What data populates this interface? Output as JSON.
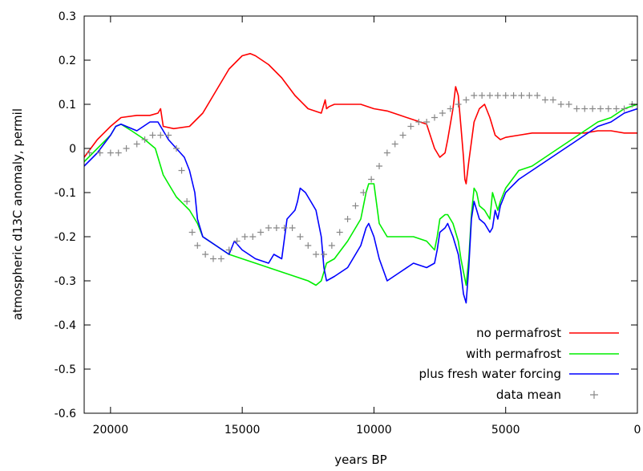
{
  "chart_data": {
    "type": "line",
    "title": "",
    "xlabel": "years BP",
    "ylabel": "atmospheric d13C anomaly, permil",
    "xlim": [
      21000,
      0
    ],
    "ylim": [
      -0.6,
      0.3
    ],
    "x_reversed": true,
    "grid": false,
    "legend_position": "bottom-right",
    "x_ticks": [
      20000,
      15000,
      10000,
      5000,
      0
    ],
    "x_tick_labels": [
      "20000",
      "15000",
      "10000",
      "5000",
      "0"
    ],
    "y_ticks": [
      0.3,
      0.2,
      0.1,
      0,
      -0.1,
      -0.2,
      -0.3,
      -0.4,
      -0.5,
      -0.6
    ],
    "y_tick_labels": [
      "0.3",
      "0.2",
      "0.1",
      "0",
      "-0.1",
      "-0.2",
      "-0.3",
      "-0.4",
      "-0.5",
      "-0.6"
    ],
    "series": [
      {
        "name": "no permafrost",
        "color": "#ff0000",
        "style": "line",
        "x": [
          21000,
          20500,
          20000,
          19800,
          19600,
          19000,
          18500,
          18200,
          18100,
          18000,
          17600,
          17000,
          16500,
          16000,
          15500,
          15000,
          14700,
          14500,
          14000,
          13500,
          13000,
          12500,
          12000,
          11900,
          11850,
          11800,
          11700,
          11500,
          11000,
          10500,
          10000,
          9500,
          9000,
          8500,
          8000,
          7700,
          7500,
          7300,
          7200,
          7000,
          6900,
          6800,
          6700,
          6600,
          6550,
          6500,
          6400,
          6200,
          6000,
          5800,
          5600,
          5400,
          5200,
          5000,
          4500,
          4000,
          3500,
          3000,
          2500,
          2000,
          1500,
          1000,
          500,
          0
        ],
        "y": [
          -0.02,
          0.02,
          0.05,
          0.06,
          0.07,
          0.075,
          0.075,
          0.08,
          0.09,
          0.05,
          0.045,
          0.05,
          0.08,
          0.13,
          0.18,
          0.21,
          0.215,
          0.21,
          0.19,
          0.16,
          0.12,
          0.09,
          0.08,
          0.1,
          0.11,
          0.09,
          0.095,
          0.1,
          0.1,
          0.1,
          0.09,
          0.085,
          0.075,
          0.065,
          0.055,
          0.0,
          -0.02,
          -0.01,
          0.02,
          0.09,
          0.14,
          0.12,
          0.05,
          -0.02,
          -0.07,
          -0.08,
          -0.03,
          0.06,
          0.09,
          0.1,
          0.07,
          0.03,
          0.02,
          0.025,
          0.03,
          0.035,
          0.035,
          0.035,
          0.035,
          0.035,
          0.04,
          0.04,
          0.035,
          0.035
        ]
      },
      {
        "name": "with permafrost",
        "color": "#00ee00",
        "style": "line",
        "x": [
          21000,
          20500,
          20000,
          19800,
          19600,
          19200,
          18700,
          18300,
          18000,
          17800,
          17500,
          17000,
          16700,
          16500,
          16000,
          15500,
          15000,
          14500,
          14000,
          13500,
          13000,
          12500,
          12200,
          12000,
          11900,
          11800,
          11500,
          11000,
          10500,
          10300,
          10200,
          10000,
          9800,
          9500,
          9000,
          8500,
          8000,
          7700,
          7600,
          7500,
          7300,
          7200,
          7000,
          6800,
          6700,
          6600,
          6500,
          6400,
          6300,
          6200,
          6100,
          6000,
          5800,
          5600,
          5500,
          5400,
          5300,
          5200,
          5000,
          4500,
          4000,
          3500,
          3000,
          2500,
          2000,
          1500,
          1000,
          500,
          0
        ],
        "y": [
          -0.03,
          0.0,
          0.03,
          0.05,
          0.055,
          0.04,
          0.02,
          0.0,
          -0.06,
          -0.08,
          -0.11,
          -0.14,
          -0.17,
          -0.2,
          -0.22,
          -0.24,
          -0.25,
          -0.26,
          -0.27,
          -0.28,
          -0.29,
          -0.3,
          -0.31,
          -0.3,
          -0.28,
          -0.26,
          -0.25,
          -0.21,
          -0.16,
          -0.1,
          -0.08,
          -0.08,
          -0.17,
          -0.2,
          -0.2,
          -0.2,
          -0.21,
          -0.23,
          -0.2,
          -0.16,
          -0.15,
          -0.15,
          -0.17,
          -0.21,
          -0.25,
          -0.28,
          -0.31,
          -0.25,
          -0.15,
          -0.09,
          -0.1,
          -0.13,
          -0.14,
          -0.16,
          -0.1,
          -0.12,
          -0.14,
          -0.12,
          -0.09,
          -0.05,
          -0.04,
          -0.02,
          0.0,
          0.02,
          0.04,
          0.06,
          0.07,
          0.09,
          0.1
        ]
      },
      {
        "name": "plus fresh water forcing",
        "color": "#0000ff",
        "style": "line",
        "x": [
          21000,
          20500,
          20000,
          19800,
          19600,
          19000,
          18500,
          18200,
          18000,
          17800,
          17500,
          17200,
          17000,
          16800,
          16700,
          16500,
          16000,
          15500,
          15300,
          15000,
          14500,
          14000,
          13800,
          13500,
          13300,
          13000,
          12900,
          12800,
          12600,
          12400,
          12200,
          12000,
          11900,
          11800,
          11500,
          11000,
          10500,
          10300,
          10200,
          10000,
          9800,
          9500,
          9000,
          8500,
          8000,
          7700,
          7600,
          7500,
          7300,
          7200,
          7000,
          6800,
          6700,
          6600,
          6500,
          6400,
          6300,
          6200,
          6100,
          6000,
          5800,
          5600,
          5500,
          5400,
          5300,
          5200,
          5000,
          4500,
          4000,
          3500,
          3000,
          2500,
          2000,
          1500,
          1000,
          500,
          0
        ],
        "y": [
          -0.04,
          -0.01,
          0.03,
          0.05,
          0.055,
          0.04,
          0.06,
          0.06,
          0.04,
          0.02,
          0.0,
          -0.02,
          -0.05,
          -0.1,
          -0.16,
          -0.2,
          -0.22,
          -0.24,
          -0.21,
          -0.23,
          -0.25,
          -0.26,
          -0.24,
          -0.25,
          -0.16,
          -0.14,
          -0.12,
          -0.09,
          -0.1,
          -0.12,
          -0.14,
          -0.2,
          -0.27,
          -0.3,
          -0.29,
          -0.27,
          -0.22,
          -0.18,
          -0.17,
          -0.2,
          -0.25,
          -0.3,
          -0.28,
          -0.26,
          -0.27,
          -0.26,
          -0.23,
          -0.19,
          -0.18,
          -0.17,
          -0.2,
          -0.24,
          -0.28,
          -0.33,
          -0.35,
          -0.27,
          -0.16,
          -0.12,
          -0.14,
          -0.16,
          -0.17,
          -0.19,
          -0.18,
          -0.14,
          -0.16,
          -0.13,
          -0.1,
          -0.07,
          -0.05,
          -0.03,
          -0.01,
          0.01,
          0.03,
          0.05,
          0.06,
          0.08,
          0.09
        ]
      },
      {
        "name": "data mean",
        "color": "#888888",
        "style": "points",
        "x": [
          20800,
          20400,
          20000,
          19700,
          19400,
          19000,
          18700,
          18400,
          18100,
          17800,
          17500,
          17300,
          17100,
          16900,
          16700,
          16400,
          16100,
          15800,
          15500,
          15200,
          14900,
          14600,
          14300,
          14000,
          13700,
          13400,
          13100,
          12800,
          12500,
          12200,
          11900,
          11600,
          11300,
          11000,
          10700,
          10400,
          10100,
          9800,
          9500,
          9200,
          8900,
          8600,
          8300,
          8000,
          7700,
          7400,
          7100,
          6800,
          6500,
          6200,
          5900,
          5600,
          5300,
          5000,
          4700,
          4400,
          4100,
          3800,
          3500,
          3200,
          2900,
          2600,
          2300,
          2000,
          1700,
          1400,
          1100,
          800,
          500,
          200
        ],
        "y": [
          -0.01,
          -0.01,
          -0.01,
          -0.01,
          0.0,
          0.01,
          0.02,
          0.03,
          0.03,
          0.03,
          0.0,
          -0.05,
          -0.12,
          -0.19,
          -0.22,
          -0.24,
          -0.25,
          -0.25,
          -0.23,
          -0.21,
          -0.2,
          -0.2,
          -0.19,
          -0.18,
          -0.18,
          -0.18,
          -0.18,
          -0.2,
          -0.22,
          -0.24,
          -0.24,
          -0.22,
          -0.19,
          -0.16,
          -0.13,
          -0.1,
          -0.07,
          -0.04,
          -0.01,
          0.01,
          0.03,
          0.05,
          0.06,
          0.06,
          0.07,
          0.08,
          0.09,
          0.1,
          0.11,
          0.12,
          0.12,
          0.12,
          0.12,
          0.12,
          0.12,
          0.12,
          0.12,
          0.12,
          0.11,
          0.11,
          0.1,
          0.1,
          0.09,
          0.09,
          0.09,
          0.09,
          0.09,
          0.09,
          0.09,
          0.1
        ]
      }
    ]
  }
}
